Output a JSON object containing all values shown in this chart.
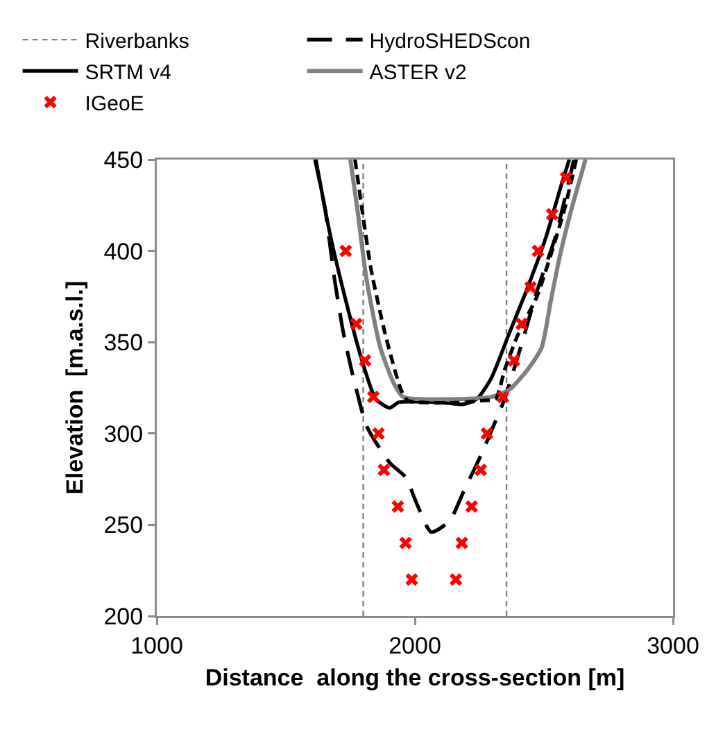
{
  "chart_data": {
    "type": "line",
    "xlabel": "Distance  along the cross-section [m]",
    "ylabel": "Elevation  [m.a.s.l.]",
    "xlim": [
      1000,
      3000
    ],
    "xticks": [
      1000,
      2000,
      3000
    ],
    "ylim": [
      200,
      450
    ],
    "yticks": [
      200,
      250,
      300,
      350,
      400,
      450
    ],
    "grid": false,
    "legend": "top",
    "ref_lines": [
      {
        "axis": "x",
        "value": 1800,
        "label": "Riverbanks",
        "color": "#808080",
        "line_style": "dotted"
      },
      {
        "axis": "x",
        "value": 2355,
        "color": "#808080",
        "line_style": "dotted"
      }
    ],
    "series": [
      {
        "name": "HydroSHEDScon",
        "color": "#000000",
        "line_style": "dashed",
        "x": [
          1613,
          1652,
          1688,
          1723,
          1759,
          1777,
          1813,
          1902,
          1964,
          2009,
          2063,
          2134,
          2188,
          2259,
          2313,
          2348,
          2366,
          2420,
          2473,
          2545,
          2616
        ],
        "values": [
          450,
          423,
          385,
          355,
          332,
          322,
          304,
          284,
          276,
          261,
          246,
          252,
          268,
          289,
          307,
          319,
          327,
          352,
          378,
          408,
          450
        ]
      },
      {
        "name": "SRTM v4",
        "color": "#000000",
        "line_style": "solid",
        "x": [
          1616,
          1670,
          1723,
          1795,
          1848,
          1902,
          1937,
          2098,
          2188,
          2241,
          2295,
          2366,
          2437,
          2509,
          2563,
          2598
        ],
        "values": [
          450,
          410,
          378,
          340,
          319,
          314,
          317,
          317,
          316,
          319,
          330,
          355,
          380,
          408,
          434,
          450
        ]
      },
      {
        "name": "ASTER v2",
        "color": "#808080",
        "line_style": "solid",
        "x": [
          1750,
          1777,
          1812,
          1866,
          1920,
          1955,
          2295,
          2366,
          2437,
          2491,
          2527,
          2563,
          2607,
          2661
        ],
        "values": [
          450,
          423,
          385,
          347,
          327,
          320,
          320,
          324,
          335,
          347,
          373,
          398,
          423,
          450
        ]
      },
      {
        "color": "#000000",
        "line_style": "dotted",
        "x": [
          1768,
          1795,
          1830,
          1884,
          1946,
          1973,
          2188,
          2259,
          2313,
          2348,
          2402,
          2473,
          2527,
          2580,
          2625
        ],
        "values": [
          450,
          423,
          390,
          355,
          324,
          318,
          317,
          318,
          319,
          335,
          355,
          375,
          398,
          423,
          450
        ]
      },
      {
        "name": "IGeoE",
        "type": "scatter",
        "marker": "cross",
        "color": "#ff0000",
        "x": [
          1732,
          1773,
          1807,
          1839,
          1859,
          1880,
          1934,
          1964,
          1988,
          2159,
          2182,
          2220,
          2255,
          2279,
          2341,
          2384,
          2414,
          2448,
          2477,
          2532,
          2586
        ],
        "values": [
          400,
          360,
          340,
          320,
          300,
          280,
          260,
          240,
          220,
          220,
          240,
          260,
          280,
          300,
          320,
          340,
          360,
          380,
          400,
          420,
          440
        ]
      }
    ]
  }
}
